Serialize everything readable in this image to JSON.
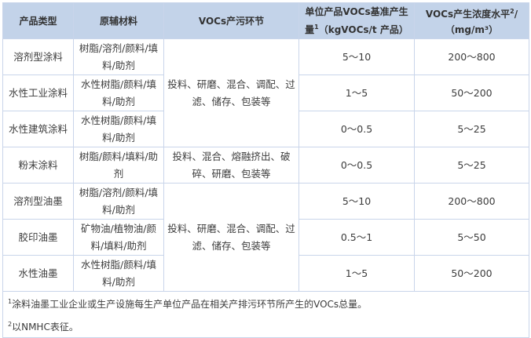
{
  "headers": {
    "product_type": "产品类型",
    "materials": "原辅材料",
    "process": "VOCs产污环节",
    "generation": "单位产品VOCs基准产生量",
    "generation_sup": "1",
    "generation_unit": "（kgVOCs/t 产品）",
    "concentration": "VOCs产生浓度水平",
    "concentration_sup": "2",
    "concentration_unit": "/（mg/m³）"
  },
  "rows": [
    {
      "type": "溶剂型涂料",
      "materials": "树脂/溶剂/颜料/填料/助剂",
      "generation": "5～10",
      "concentration": "200～800"
    },
    {
      "type": "水性工业涂料",
      "materials": "水性树脂/颜料/填料/助剂",
      "generation": "1～5",
      "concentration": "50～200"
    },
    {
      "type": "水性建筑涂料",
      "materials": "水性树脂/颜料/填料/助剂",
      "generation": "0～0.5",
      "concentration": "5～25"
    },
    {
      "type": "粉末涂料",
      "materials": "树脂/颜料/填料/助剂",
      "generation": "0～0.5",
      "concentration": "5～25"
    },
    {
      "type": "溶剂型油墨",
      "materials": "树脂/溶剂/颜料/填料/助剂",
      "generation": "5～10",
      "concentration": "200～800"
    },
    {
      "type": "胶印油墨",
      "materials": "矿物油/植物油/颜料/填料/助剂",
      "generation": "0.5～1",
      "concentration": "5～50"
    },
    {
      "type": "水性油墨",
      "materials": "水性树脂/颜料/填料/助剂",
      "generation": "1～5",
      "concentration": "50～200"
    }
  ],
  "process_groups": [
    "投料、研磨、混合、调配、过滤、储存、包装等",
    "投料、混合、熔融挤出、破碎、研磨、包装等",
    "投料、研磨、混合、调配、过滤、储存、包装等"
  ],
  "footnotes": [
    {
      "mark": "1",
      "text": "涂料油墨工业企业或生产设施每生产单位产品在相关产排污环节所产生的VOCs总量。"
    },
    {
      "mark": "2",
      "text": "以NMHC表征。"
    }
  ]
}
